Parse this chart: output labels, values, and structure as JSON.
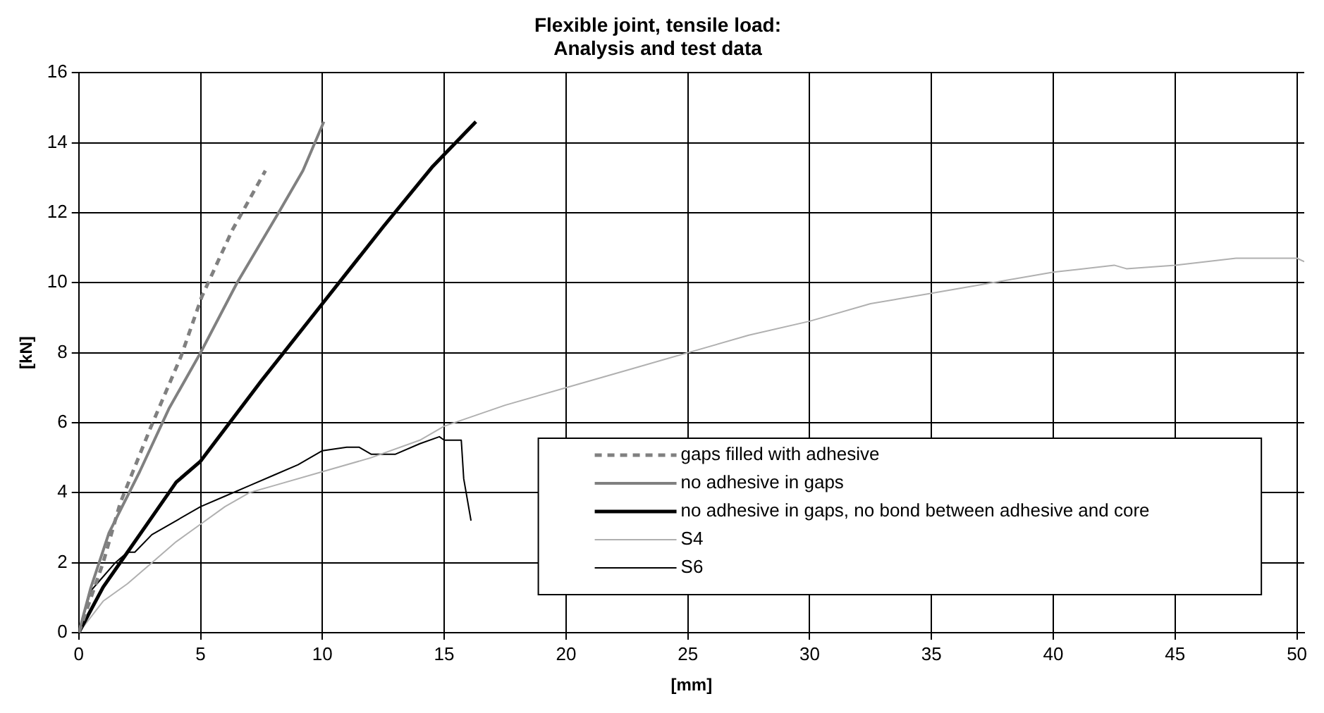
{
  "chart_data": {
    "type": "line",
    "title": "Flexible joint, tensile load:\nAnalysis and test data",
    "xlabel": "[mm]",
    "ylabel": "[kN]",
    "xlim": [
      0,
      50.3
    ],
    "xticks": [
      0,
      5,
      10,
      15,
      20,
      25,
      30,
      35,
      40,
      45,
      50
    ],
    "ylim": [
      0,
      16
    ],
    "yticks": [
      0,
      2,
      4,
      6,
      8,
      10,
      12,
      14,
      16
    ],
    "grid": true,
    "legend": "bottom right",
    "marker": "none",
    "series": [
      {
        "name": "gaps filled with adhesive",
        "color": "#808080",
        "line_style": "dashed",
        "x": [
          0,
          0.5,
          1,
          1.7,
          2.95,
          4.2,
          5.05,
          6.3,
          7.66
        ],
        "values": [
          0,
          1,
          2,
          3.7,
          5.86,
          7.9,
          9.6,
          11.5,
          13.2
        ]
      },
      {
        "name": "no adhesive in gaps",
        "color": "#808080",
        "line_style": "solid",
        "x": [
          0,
          0.48,
          1.24,
          2.5,
          3.7,
          5,
          6.5,
          8.2,
          9.2,
          10.06
        ],
        "values": [
          0,
          1.25,
          2.85,
          4.6,
          6.4,
          8,
          10,
          12,
          13.2,
          14.6
        ]
      },
      {
        "name": "no adhesive in gaps, no bond between adhesive and core",
        "color": "#000000",
        "line_style": "solid",
        "x": [
          0,
          1,
          2,
          3,
          4,
          5,
          7.5,
          10,
          12.5,
          14.5,
          16.3
        ],
        "values": [
          0,
          1.3,
          2.3,
          3.3,
          4.3,
          4.9,
          7.2,
          9.4,
          11.6,
          13.3,
          14.6
        ]
      },
      {
        "name": "S4",
        "color": "#b0b0b0",
        "line_style": "solid",
        "x": [
          0,
          1,
          2,
          3,
          4,
          5,
          6,
          7,
          8,
          10,
          12,
          14,
          15,
          17.5,
          20,
          22.5,
          25,
          27.5,
          30,
          32.5,
          35,
          37.5,
          40,
          42.5,
          43,
          45,
          47.5,
          50,
          50.3
        ],
        "values": [
          0,
          0.9,
          1.4,
          2,
          2.6,
          3.1,
          3.6,
          4,
          4.2,
          4.6,
          5,
          5.5,
          5.9,
          6.5,
          7,
          7.5,
          8,
          8.5,
          8.9,
          9.4,
          9.7,
          10,
          10.3,
          10.5,
          10.4,
          10.5,
          10.7,
          10.7,
          10.6
        ]
      },
      {
        "name": "S6",
        "color": "#000000",
        "line_style": "solid",
        "x": [
          0,
          0.5,
          1,
          1.5,
          2,
          2.3,
          3,
          4,
          5,
          6,
          7,
          8,
          9,
          10,
          11,
          11.5,
          12,
          13,
          14,
          14.8,
          15,
          15.7,
          15.8,
          16.1
        ],
        "values": [
          0,
          1.2,
          1.6,
          2,
          2.3,
          2.3,
          2.8,
          3.2,
          3.6,
          3.9,
          4.2,
          4.5,
          4.8,
          5.2,
          5.3,
          5.3,
          5.1,
          5.1,
          5.4,
          5.6,
          5.5,
          5.5,
          4.4,
          3.2
        ]
      }
    ]
  }
}
